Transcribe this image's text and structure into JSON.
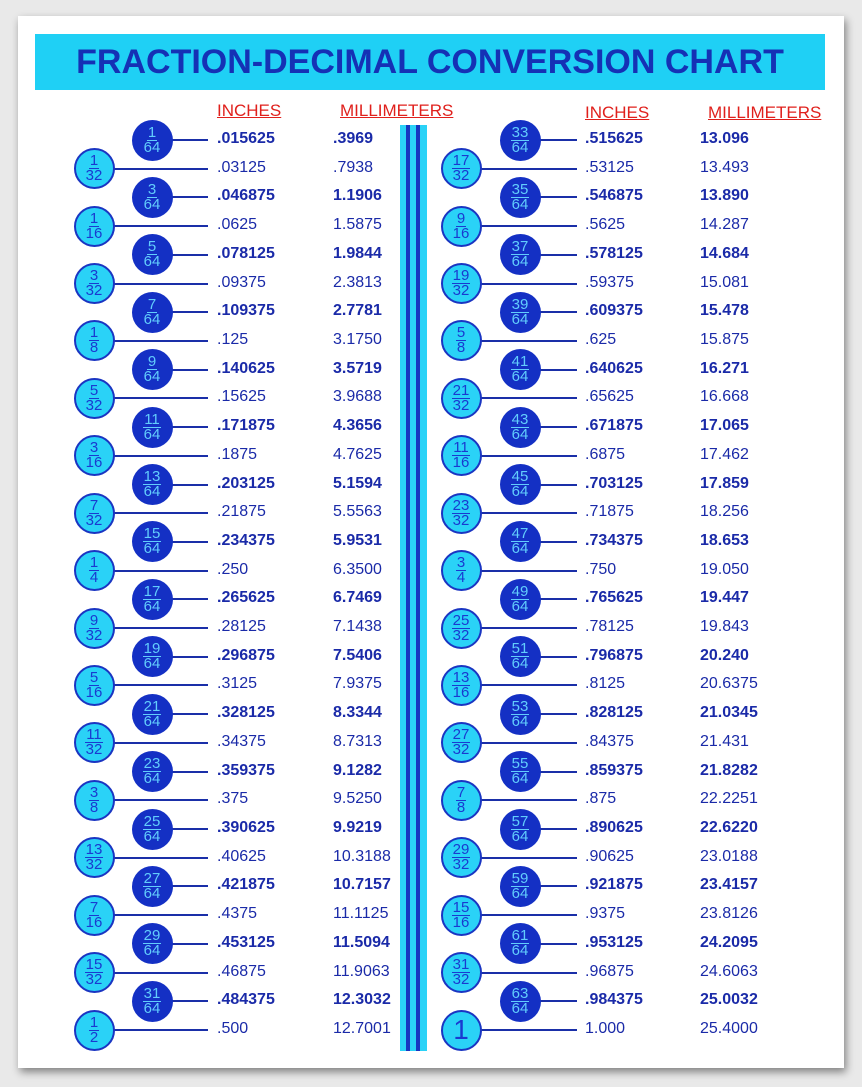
{
  "title": "FRACTION-DECIMAL CONVERSION CHART",
  "headers": {
    "inches": "INCHES",
    "millimeters": "MILLIMETERS"
  },
  "colors": {
    "banner": "#1fd0f5",
    "title": "#1531b5",
    "header": "#e0201c",
    "dark_circle": "#1430c4",
    "light_circle": "#2ad2f7",
    "text": "#1a2aa8"
  },
  "left": [
    {
      "n": "1",
      "d": "64",
      "in": ".015625",
      "mm": ".3969"
    },
    {
      "n": "1",
      "d": "32",
      "in": ".03125",
      "mm": ".7938"
    },
    {
      "n": "3",
      "d": "64",
      "in": ".046875",
      "mm": "1.1906"
    },
    {
      "n": "1",
      "d": "16",
      "in": ".0625",
      "mm": "1.5875"
    },
    {
      "n": "5",
      "d": "64",
      "in": ".078125",
      "mm": "1.9844"
    },
    {
      "n": "3",
      "d": "32",
      "in": ".09375",
      "mm": "2.3813"
    },
    {
      "n": "7",
      "d": "64",
      "in": ".109375",
      "mm": "2.7781"
    },
    {
      "n": "1",
      "d": "8",
      "in": ".125",
      "mm": "3.1750"
    },
    {
      "n": "9",
      "d": "64",
      "in": ".140625",
      "mm": "3.5719"
    },
    {
      "n": "5",
      "d": "32",
      "in": ".15625",
      "mm": "3.9688"
    },
    {
      "n": "11",
      "d": "64",
      "in": ".171875",
      "mm": "4.3656"
    },
    {
      "n": "3",
      "d": "16",
      "in": ".1875",
      "mm": "4.7625"
    },
    {
      "n": "13",
      "d": "64",
      "in": ".203125",
      "mm": "5.1594"
    },
    {
      "n": "7",
      "d": "32",
      "in": ".21875",
      "mm": "5.5563"
    },
    {
      "n": "15",
      "d": "64",
      "in": ".234375",
      "mm": "5.9531"
    },
    {
      "n": "1",
      "d": "4",
      "in": ".250",
      "mm": "6.3500"
    },
    {
      "n": "17",
      "d": "64",
      "in": ".265625",
      "mm": "6.7469"
    },
    {
      "n": "9",
      "d": "32",
      "in": ".28125",
      "mm": "7.1438"
    },
    {
      "n": "19",
      "d": "64",
      "in": ".296875",
      "mm": "7.5406"
    },
    {
      "n": "5",
      "d": "16",
      "in": ".3125",
      "mm": "7.9375"
    },
    {
      "n": "21",
      "d": "64",
      "in": ".328125",
      "mm": "8.3344"
    },
    {
      "n": "11",
      "d": "32",
      "in": ".34375",
      "mm": "8.7313"
    },
    {
      "n": "23",
      "d": "64",
      "in": ".359375",
      "mm": "9.1282"
    },
    {
      "n": "3",
      "d": "8",
      "in": ".375",
      "mm": "9.5250"
    },
    {
      "n": "25",
      "d": "64",
      "in": ".390625",
      "mm": "9.9219"
    },
    {
      "n": "13",
      "d": "32",
      "in": ".40625",
      "mm": "10.3188"
    },
    {
      "n": "27",
      "d": "64",
      "in": ".421875",
      "mm": "10.7157"
    },
    {
      "n": "7",
      "d": "16",
      "in": ".4375",
      "mm": "11.1125"
    },
    {
      "n": "29",
      "d": "64",
      "in": ".453125",
      "mm": "11.5094"
    },
    {
      "n": "15",
      "d": "32",
      "in": ".46875",
      "mm": "11.9063"
    },
    {
      "n": "31",
      "d": "64",
      "in": ".484375",
      "mm": "12.3032"
    },
    {
      "n": "1",
      "d": "2",
      "in": ".500",
      "mm": "12.7001"
    }
  ],
  "right": [
    {
      "n": "33",
      "d": "64",
      "in": ".515625",
      "mm": "13.096"
    },
    {
      "n": "17",
      "d": "32",
      "in": ".53125",
      "mm": "13.493"
    },
    {
      "n": "35",
      "d": "64",
      "in": ".546875",
      "mm": "13.890"
    },
    {
      "n": "9",
      "d": "16",
      "in": ".5625",
      "mm": "14.287"
    },
    {
      "n": "37",
      "d": "64",
      "in": ".578125",
      "mm": "14.684"
    },
    {
      "n": "19",
      "d": "32",
      "in": ".59375",
      "mm": "15.081"
    },
    {
      "n": "39",
      "d": "64",
      "in": ".609375",
      "mm": "15.478"
    },
    {
      "n": "5",
      "d": "8",
      "in": ".625",
      "mm": "15.875"
    },
    {
      "n": "41",
      "d": "64",
      "in": ".640625",
      "mm": "16.271"
    },
    {
      "n": "21",
      "d": "32",
      "in": ".65625",
      "mm": "16.668"
    },
    {
      "n": "43",
      "d": "64",
      "in": ".671875",
      "mm": "17.065"
    },
    {
      "n": "11",
      "d": "16",
      "in": ".6875",
      "mm": "17.462"
    },
    {
      "n": "45",
      "d": "64",
      "in": ".703125",
      "mm": "17.859"
    },
    {
      "n": "23",
      "d": "32",
      "in": ".71875",
      "mm": "18.256"
    },
    {
      "n": "47",
      "d": "64",
      "in": ".734375",
      "mm": "18.653"
    },
    {
      "n": "3",
      "d": "4",
      "in": ".750",
      "mm": "19.050"
    },
    {
      "n": "49",
      "d": "64",
      "in": ".765625",
      "mm": "19.447"
    },
    {
      "n": "25",
      "d": "32",
      "in": ".78125",
      "mm": "19.843"
    },
    {
      "n": "51",
      "d": "64",
      "in": ".796875",
      "mm": "20.240"
    },
    {
      "n": "13",
      "d": "16",
      "in": ".8125",
      "mm": "20.6375"
    },
    {
      "n": "53",
      "d": "64",
      "in": ".828125",
      "mm": "21.0345"
    },
    {
      "n": "27",
      "d": "32",
      "in": ".84375",
      "mm": "21.431"
    },
    {
      "n": "55",
      "d": "64",
      "in": ".859375",
      "mm": "21.8282"
    },
    {
      "n": "7",
      "d": "8",
      "in": ".875",
      "mm": "22.2251"
    },
    {
      "n": "57",
      "d": "64",
      "in": ".890625",
      "mm": "22.6220"
    },
    {
      "n": "29",
      "d": "32",
      "in": ".90625",
      "mm": "23.0188"
    },
    {
      "n": "59",
      "d": "64",
      "in": ".921875",
      "mm": "23.4157"
    },
    {
      "n": "15",
      "d": "16",
      "in": ".9375",
      "mm": "23.8126"
    },
    {
      "n": "61",
      "d": "64",
      "in": ".953125",
      "mm": "24.2095"
    },
    {
      "n": "31",
      "d": "32",
      "in": ".96875",
      "mm": "24.6063"
    },
    {
      "n": "63",
      "d": "64",
      "in": ".984375",
      "mm": "25.0032"
    },
    {
      "n": "1",
      "d": "",
      "in": "1.000",
      "mm": "25.4000"
    }
  ]
}
